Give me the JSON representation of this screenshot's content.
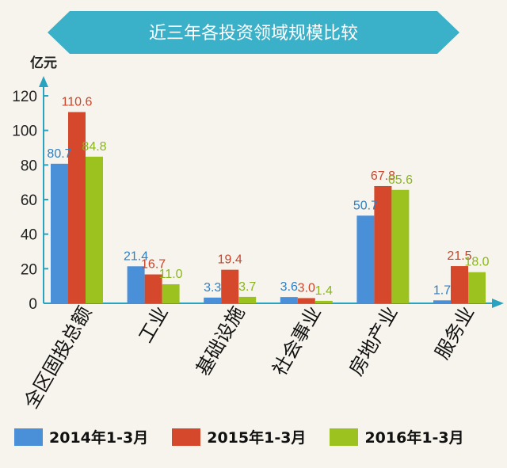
{
  "chart_data": {
    "type": "bar",
    "title": "近三年各投资领域规模比较",
    "ylabel": "亿元",
    "xlabel": "",
    "ylim": [
      0,
      120
    ],
    "yticks": [
      0,
      20,
      40,
      60,
      80,
      100,
      120
    ],
    "categories": [
      "全区固投总额",
      "工业",
      "基础设施",
      "社会事业",
      "房地产业",
      "服务业"
    ],
    "series": [
      {
        "name": "2014年1-3月",
        "color": "#4a90d9",
        "values": [
          80.7,
          21.4,
          3.3,
          3.6,
          50.7,
          1.7
        ],
        "labels": [
          "80.7",
          "21.4",
          "3.3",
          "3.6",
          "50.7",
          "1.7"
        ]
      },
      {
        "name": "2015年1-3月",
        "color": "#d6482b",
        "values": [
          110.6,
          16.7,
          19.4,
          3.0,
          67.8,
          21.5
        ],
        "labels": [
          "110.6",
          "16.7",
          "19.4",
          "3.0",
          "67.8",
          "21.5"
        ]
      },
      {
        "name": "2016年1-3月",
        "color": "#9bc21f",
        "values": [
          84.8,
          11.0,
          3.7,
          1.4,
          65.6,
          18.0
        ],
        "labels": [
          "84.8",
          "11.0",
          "3.7",
          "1.4",
          "65.6",
          "18.0"
        ]
      }
    ],
    "legend_position": "bottom",
    "grid": false
  },
  "colors": {
    "title_banner": "#3bb0c9",
    "axis": "#29a3bf",
    "label_blue": "#2f7fc4",
    "label_red": "#c9452b",
    "label_green": "#8ab61c"
  }
}
